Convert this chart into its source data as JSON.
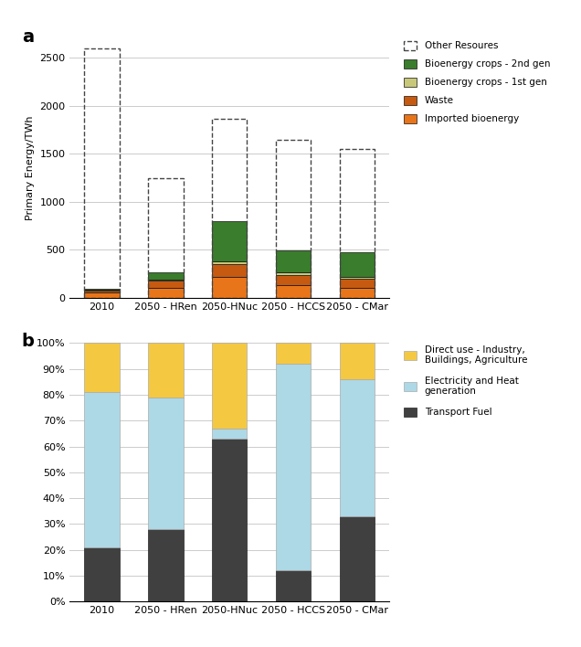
{
  "categories": [
    "2010",
    "2050 - HRen",
    "2050-HNuc",
    "2050 - HCCS",
    "2050 - CMar"
  ],
  "top": {
    "imported_bioenergy": [
      50,
      100,
      220,
      135,
      105
    ],
    "waste": [
      25,
      75,
      130,
      100,
      95
    ],
    "bioenergy_1st": [
      5,
      15,
      25,
      30,
      20
    ],
    "bioenergy_2nd": [
      10,
      75,
      420,
      230,
      250
    ],
    "dashed_total": [
      2600,
      1250,
      1870,
      1650,
      1555
    ],
    "colors": {
      "imported_bioenergy": "#E8751A",
      "waste": "#C65A11",
      "bioenergy_1st": "#C8C87A",
      "bioenergy_2nd": "#3A7D2C"
    },
    "ylabel": "Primary Energy/TWh",
    "ylim": [
      0,
      2700
    ],
    "yticks": [
      0,
      500,
      1000,
      1500,
      2000,
      2500
    ]
  },
  "bottom": {
    "transport": [
      21,
      28,
      63,
      12,
      33
    ],
    "elec_heat": [
      60,
      51,
      4,
      80,
      53
    ],
    "direct_use": [
      19,
      21,
      33,
      8,
      14
    ],
    "colors": {
      "transport": "#404040",
      "elec_heat": "#ADD8E6",
      "direct_use": "#F5C842"
    },
    "ylim": [
      0,
      100
    ],
    "yticks": [
      0,
      10,
      20,
      30,
      40,
      50,
      60,
      70,
      80,
      90,
      100
    ],
    "yticklabels": [
      "0%",
      "10%",
      "20%",
      "30%",
      "40%",
      "50%",
      "60%",
      "70%",
      "80%",
      "90%",
      "100%"
    ]
  },
  "background_color": "#FFFFFF"
}
